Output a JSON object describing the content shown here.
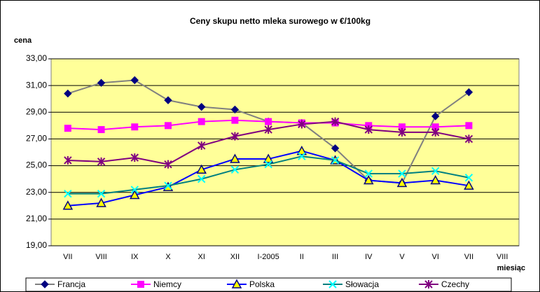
{
  "chart_data": {
    "type": "line",
    "title": "Ceny skupu netto mleka surowego  w €/100kg",
    "y_label": "cena",
    "x_label": "miesiąc",
    "categories": [
      "VII",
      "VIII",
      "IX",
      "X",
      "XI",
      "XII",
      "I-2005",
      "II",
      "III",
      "IV",
      "V",
      "VI",
      "VII",
      "VIII"
    ],
    "ylim": [
      19,
      33
    ],
    "yticks": [
      {
        "value": 19,
        "label": "19,00"
      },
      {
        "value": 21,
        "label": "21,00"
      },
      {
        "value": 23,
        "label": "23,00"
      },
      {
        "value": 25,
        "label": "25,00"
      },
      {
        "value": 27,
        "label": "27,00"
      },
      {
        "value": 29,
        "label": "29,00"
      },
      {
        "value": 31,
        "label": "31,00"
      },
      {
        "value": 33,
        "label": "33,00"
      }
    ],
    "grid": true,
    "legend": "bottom",
    "series": [
      {
        "name": "Francja",
        "color": "#808080",
        "marker": "diamond",
        "marker_color": "#000080",
        "values": [
          30.4,
          31.2,
          31.4,
          29.9,
          29.4,
          29.2,
          28.3,
          28.2,
          26.3,
          23.9,
          23.7,
          28.7,
          30.5,
          null
        ]
      },
      {
        "name": "Niemcy",
        "color": "#ff00ff",
        "marker": "square",
        "marker_color": "#ff00ff",
        "values": [
          27.8,
          27.7,
          27.9,
          28.0,
          28.3,
          28.4,
          28.3,
          28.2,
          28.2,
          28.0,
          27.9,
          27.9,
          28.0,
          null
        ]
      },
      {
        "name": "Polska",
        "color": "#0000ff",
        "marker": "triangle",
        "marker_color": "#ffff00",
        "values": [
          22.0,
          22.2,
          22.8,
          23.4,
          24.7,
          25.5,
          25.5,
          26.1,
          25.4,
          23.9,
          23.7,
          23.9,
          23.5,
          null
        ]
      },
      {
        "name": "Słowacja",
        "color": "#008080",
        "marker": "x",
        "marker_color": "#00ffff",
        "values": [
          22.9,
          22.9,
          23.2,
          23.5,
          24.0,
          24.7,
          25.1,
          25.7,
          25.4,
          24.4,
          24.4,
          24.6,
          24.1,
          null
        ]
      },
      {
        "name": "Czechy",
        "color": "#800080",
        "marker": "star",
        "marker_color": "#800080",
        "values": [
          25.4,
          25.3,
          25.6,
          25.1,
          26.5,
          27.2,
          27.7,
          28.1,
          28.3,
          27.7,
          27.5,
          27.5,
          27.0,
          null
        ]
      }
    ]
  }
}
